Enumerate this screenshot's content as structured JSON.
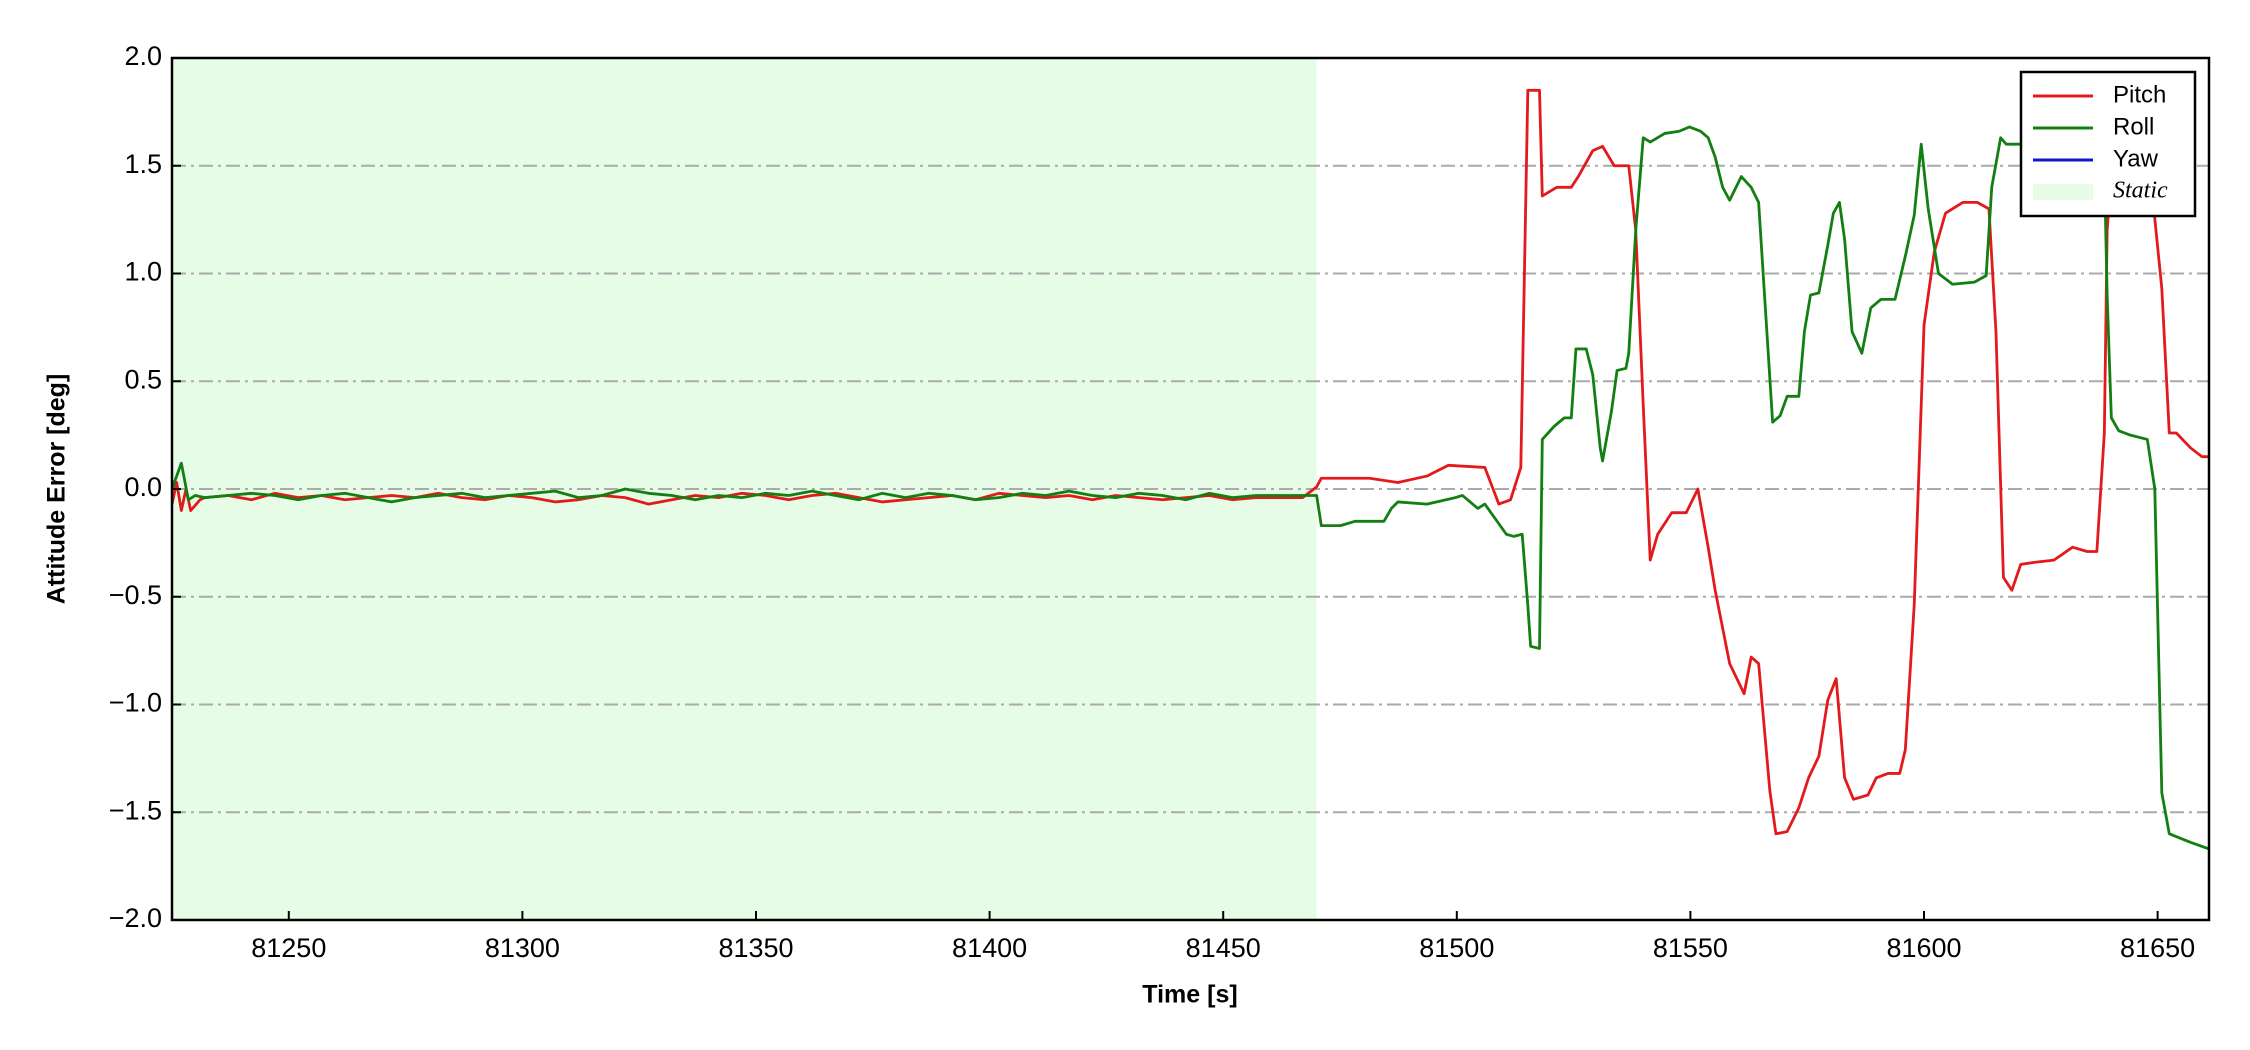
{
  "chart_data": {
    "type": "line",
    "xlabel": "Time [s]",
    "ylabel": "Attitude Error [deg]",
    "xlim": [
      81225,
      81661
    ],
    "ylim": [
      -2,
      2
    ],
    "xticks": [
      81250,
      81300,
      81350,
      81400,
      81450,
      81500,
      81550,
      81600,
      81650
    ],
    "yticks": [
      {
        "value": -2,
        "label": "−2.0"
      },
      {
        "value": -1.5,
        "label": "−1.5"
      },
      {
        "value": -1,
        "label": "−1.0"
      },
      {
        "value": -0.5,
        "label": "−0.5"
      },
      {
        "value": 0,
        "label": "0.0"
      },
      {
        "value": 0.5,
        "label": "0.5"
      },
      {
        "value": 1,
        "label": "1.0"
      },
      {
        "value": 1.5,
        "label": "1.5"
      },
      {
        "value": 2,
        "label": "2.0"
      }
    ],
    "grid": "y",
    "legend": "upper right",
    "shaded_span": {
      "name": "Static",
      "color": "#e6fce6",
      "x": [
        81225,
        81470
      ]
    },
    "series": [
      {
        "name": "Pitch",
        "color": "#e31a1c",
        "x": [
          81225,
          81226,
          81227,
          81228,
          81229,
          81231,
          81232,
          81237,
          81242,
          81247,
          81252,
          81257,
          81262,
          81267,
          81272,
          81277,
          81282,
          81287,
          81292,
          81297,
          81302,
          81307,
          81312,
          81317,
          81322,
          81327,
          81332,
          81337,
          81342,
          81347,
          81352,
          81357,
          81362,
          81367,
          81372,
          81377,
          81382,
          81387,
          81392,
          81397,
          81402,
          81407,
          81412,
          81417,
          81422,
          81427,
          81432,
          81437,
          81442,
          81447,
          81452,
          81457,
          81462,
          81467,
          81470,
          81471,
          81481.3,
          81487.4,
          81493.6,
          81498.2,
          81506,
          81509,
          81511.5,
          81513.7,
          81515.2,
          81517.7,
          81518.3,
          81521.4,
          81524.5,
          81526,
          81529.1,
          81531.2,
          81533.7,
          81536.8,
          81538.3,
          81539.9,
          81541.4,
          81543,
          81546,
          81549.1,
          81551.6,
          81553.8,
          81555.3,
          81558.4,
          81561.5,
          81563,
          81564.6,
          81567,
          81568.3,
          81570.7,
          81573.2,
          81575.3,
          81577.5,
          81579.4,
          81581.2,
          81583,
          81584.9,
          81588,
          81589.8,
          81592.3,
          81594.8,
          81596,
          81597.9,
          81600,
          81602.2,
          81604.6,
          81608.3,
          81611.4,
          81613.9,
          81615.4,
          81617,
          81618.8,
          81620.7,
          81623.8,
          81627.8,
          81631.8,
          81634.9,
          81637,
          81638.6,
          81639.2,
          81640.1,
          81641.7,
          81647.8,
          81650.9,
          81652.5,
          81654,
          81657.1,
          81659.5,
          81661
        ],
        "values": [
          -0.07,
          0.03,
          -0.1,
          0,
          -0.1,
          -0.05,
          -0.04,
          -0.03,
          -0.05,
          -0.02,
          -0.04,
          -0.03,
          -0.05,
          -0.04,
          -0.03,
          -0.04,
          -0.02,
          -0.04,
          -0.05,
          -0.03,
          -0.04,
          -0.06,
          -0.05,
          -0.03,
          -0.04,
          -0.07,
          -0.05,
          -0.03,
          -0.04,
          -0.02,
          -0.03,
          -0.05,
          -0.03,
          -0.02,
          -0.04,
          -0.06,
          -0.05,
          -0.04,
          -0.03,
          -0.05,
          -0.02,
          -0.03,
          -0.04,
          -0.03,
          -0.05,
          -0.03,
          -0.04,
          -0.05,
          -0.04,
          -0.03,
          -0.05,
          -0.04,
          -0.04,
          -0.04,
          0.01,
          0.05,
          0.05,
          0.03,
          0.06,
          0.11,
          0.1,
          -0.07,
          -0.05,
          0.1,
          1.85,
          1.85,
          1.36,
          1.4,
          1.4,
          1.45,
          1.57,
          1.59,
          1.5,
          1.5,
          1.2,
          0.39,
          -0.33,
          -0.21,
          -0.11,
          -0.11,
          0,
          -0.27,
          -0.47,
          -0.81,
          -0.95,
          -0.78,
          -0.81,
          -1.4,
          -1.6,
          -1.59,
          -1.48,
          -1.34,
          -1.24,
          -0.98,
          -0.88,
          -1.34,
          -1.44,
          -1.42,
          -1.34,
          -1.32,
          -1.32,
          -1.21,
          -0.54,
          0.76,
          1.1,
          1.28,
          1.33,
          1.33,
          1.3,
          0.73,
          -0.41,
          -0.47,
          -0.35,
          -0.34,
          -0.33,
          -0.27,
          -0.29,
          -0.29,
          0.26,
          1.2,
          1.46,
          1.6,
          1.6,
          0.93,
          0.26,
          0.26,
          0.19,
          0.15,
          0.15
        ]
      },
      {
        "name": "Roll",
        "color": "#137f13",
        "x": [
          81225,
          81227,
          81228.5,
          81230,
          81232,
          81237,
          81242,
          81247,
          81252,
          81257,
          81262,
          81267,
          81272,
          81277,
          81282,
          81287,
          81292,
          81297,
          81302,
          81307,
          81312,
          81317,
          81322,
          81327,
          81332,
          81337,
          81342,
          81347,
          81352,
          81357,
          81362,
          81367,
          81372,
          81377,
          81382,
          81387,
          81392,
          81397,
          81402,
          81407,
          81412,
          81417,
          81422,
          81427,
          81432,
          81437,
          81442,
          81447,
          81452,
          81457,
          81462,
          81467,
          81470,
          81471,
          81475.1,
          81478.2,
          81484.4,
          81486,
          81487.4,
          81493.6,
          81499.7,
          81501.2,
          81504.5,
          81506,
          81510.6,
          81512.2,
          81514,
          81515.2,
          81515.8,
          81517.7,
          81518.3,
          81520.8,
          81523,
          81524.5,
          81525.5,
          81527.7,
          81529.1,
          81530.7,
          81531.2,
          81533.1,
          81534.3,
          81536.2,
          81536.8,
          81538.3,
          81539.9,
          81541.4,
          81544.5,
          81547.6,
          81549.8,
          81552.2,
          81553.8,
          81555.3,
          81556.9,
          81558.4,
          81560.9,
          81563,
          81564.6,
          81566.1,
          81567.6,
          81569.2,
          81570.7,
          81573.2,
          81574.4,
          81575.7,
          81577.5,
          81579.4,
          81580.6,
          81581.9,
          81583,
          81584.6,
          81586.7,
          81588.6,
          81590.8,
          81593.8,
          81596,
          81597.9,
          81599.4,
          81600.9,
          81603.1,
          81606.1,
          81610.8,
          81613.3,
          81614.5,
          81616.4,
          81617.6,
          81620.1,
          81623.2,
          81629,
          81637,
          81638.6,
          81639.2,
          81640.1,
          81641.7,
          81644.2,
          81647.8,
          81649.4,
          81650.9,
          81652.5,
          81657.1,
          81661
        ],
        "values": [
          0,
          0.12,
          -0.05,
          -0.03,
          -0.04,
          -0.03,
          -0.02,
          -0.03,
          -0.05,
          -0.03,
          -0.02,
          -0.04,
          -0.06,
          -0.04,
          -0.03,
          -0.02,
          -0.04,
          -0.03,
          -0.02,
          -0.01,
          -0.04,
          -0.03,
          0,
          -0.02,
          -0.03,
          -0.05,
          -0.03,
          -0.04,
          -0.02,
          -0.03,
          -0.01,
          -0.03,
          -0.05,
          -0.02,
          -0.04,
          -0.02,
          -0.03,
          -0.05,
          -0.04,
          -0.02,
          -0.03,
          -0.01,
          -0.03,
          -0.04,
          -0.02,
          -0.03,
          -0.05,
          -0.02,
          -0.04,
          -0.03,
          -0.03,
          -0.03,
          -0.03,
          -0.17,
          -0.17,
          -0.15,
          -0.15,
          -0.09,
          -0.06,
          -0.07,
          -0.04,
          -0.03,
          -0.09,
          -0.07,
          -0.21,
          -0.22,
          -0.21,
          -0.54,
          -0.73,
          -0.74,
          0.23,
          0.29,
          0.33,
          0.33,
          0.65,
          0.65,
          0.53,
          0.19,
          0.13,
          0.36,
          0.55,
          0.56,
          0.63,
          1.2,
          1.63,
          1.61,
          1.65,
          1.66,
          1.68,
          1.66,
          1.63,
          1.54,
          1.4,
          1.34,
          1.45,
          1.4,
          1.33,
          0.82,
          0.31,
          0.34,
          0.43,
          0.43,
          0.73,
          0.9,
          0.91,
          1.13,
          1.28,
          1.33,
          1.16,
          0.73,
          0.63,
          0.84,
          0.88,
          0.88,
          1.08,
          1.27,
          1.6,
          1.3,
          1.0,
          0.95,
          0.96,
          0.99,
          1.4,
          1.63,
          1.6,
          1.6,
          1.6,
          1.6,
          1.62,
          1.5,
          0.9,
          0.33,
          0.27,
          0.25,
          0.23,
          0,
          -1.41,
          -1.6,
          -1.64,
          -1.67
        ]
      },
      {
        "name": "Yaw",
        "color": "#1515c8",
        "x": [],
        "values": []
      }
    ]
  }
}
